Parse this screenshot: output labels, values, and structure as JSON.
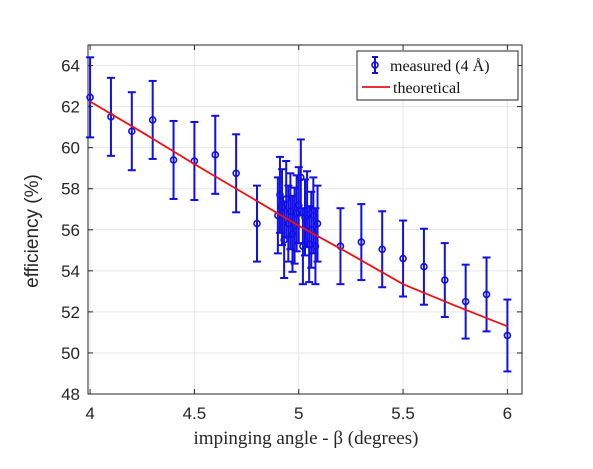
{
  "chart_data": {
    "type": "scatter",
    "title": "",
    "xlabel": "impinging angle - β (degrees)",
    "ylabel": "efficiency (%)",
    "xlim": [
      3.99,
      6.07
    ],
    "ylim": [
      48,
      65
    ],
    "xticks": [
      4,
      4.5,
      5,
      5.5,
      6
    ],
    "xtick_labels": [
      "4",
      "4.5",
      "5",
      "5.5",
      "6"
    ],
    "yticks": [
      48,
      50,
      52,
      54,
      56,
      58,
      60,
      62,
      64
    ],
    "ytick_labels": [
      "48",
      "50",
      "52",
      "54",
      "56",
      "58",
      "60",
      "62",
      "64"
    ],
    "grid": true,
    "legend_position": "top-right",
    "colors": {
      "measured": "#1010e6",
      "theoretical": "#ee1111",
      "grid": "#e6e6e6",
      "axis": "#262626"
    },
    "series": [
      {
        "name": "measured (4 Å)",
        "kind": "errorbar",
        "points": [
          {
            "x": 4.0,
            "y": 62.45,
            "err": 1.95
          },
          {
            "x": 4.1,
            "y": 61.5,
            "err": 1.9
          },
          {
            "x": 4.2,
            "y": 60.8,
            "err": 1.9
          },
          {
            "x": 4.3,
            "y": 61.35,
            "err": 1.9
          },
          {
            "x": 4.4,
            "y": 59.4,
            "err": 1.9
          },
          {
            "x": 4.5,
            "y": 59.35,
            "err": 1.9
          },
          {
            "x": 4.6,
            "y": 59.65,
            "err": 1.9
          },
          {
            "x": 4.7,
            "y": 58.75,
            "err": 1.9
          },
          {
            "x": 4.8,
            "y": 56.3,
            "err": 1.85
          },
          {
            "x": 4.9,
            "y": 56.7,
            "err": 1.85
          },
          {
            "x": 4.91,
            "y": 57.7,
            "err": 1.85
          },
          {
            "x": 4.92,
            "y": 57.1,
            "err": 1.85
          },
          {
            "x": 4.93,
            "y": 55.5,
            "err": 1.85
          },
          {
            "x": 4.94,
            "y": 57.5,
            "err": 1.85
          },
          {
            "x": 4.95,
            "y": 56.3,
            "err": 1.85
          },
          {
            "x": 4.96,
            "y": 56.9,
            "err": 1.85
          },
          {
            "x": 4.97,
            "y": 55.8,
            "err": 1.85
          },
          {
            "x": 4.98,
            "y": 56.2,
            "err": 1.85
          },
          {
            "x": 4.99,
            "y": 56.8,
            "err": 1.85
          },
          {
            "x": 5.0,
            "y": 57.2,
            "err": 1.85
          },
          {
            "x": 5.01,
            "y": 58.55,
            "err": 1.85
          },
          {
            "x": 5.02,
            "y": 55.2,
            "err": 1.85
          },
          {
            "x": 5.03,
            "y": 56.6,
            "err": 1.85
          },
          {
            "x": 5.04,
            "y": 57.0,
            "err": 1.85
          },
          {
            "x": 5.05,
            "y": 55.3,
            "err": 1.85
          },
          {
            "x": 5.06,
            "y": 56.0,
            "err": 1.85
          },
          {
            "x": 5.07,
            "y": 56.7,
            "err": 1.85
          },
          {
            "x": 5.08,
            "y": 55.2,
            "err": 1.85
          },
          {
            "x": 5.09,
            "y": 56.3,
            "err": 1.85
          },
          {
            "x": 5.2,
            "y": 55.2,
            "err": 1.85
          },
          {
            "x": 5.3,
            "y": 55.4,
            "err": 1.85
          },
          {
            "x": 5.4,
            "y": 55.05,
            "err": 1.85
          },
          {
            "x": 5.5,
            "y": 54.6,
            "err": 1.85
          },
          {
            "x": 5.6,
            "y": 54.2,
            "err": 1.85
          },
          {
            "x": 5.7,
            "y": 53.55,
            "err": 1.8
          },
          {
            "x": 5.8,
            "y": 52.5,
            "err": 1.8
          },
          {
            "x": 5.9,
            "y": 52.85,
            "err": 1.8
          },
          {
            "x": 6.0,
            "y": 50.85,
            "err": 1.75
          }
        ]
      },
      {
        "name": "theoretical",
        "kind": "line",
        "x": [
          4.0,
          4.25,
          4.5,
          4.75,
          5.0,
          5.25,
          5.5,
          5.75,
          6.0
        ],
        "y": [
          62.25,
          60.75,
          59.2,
          57.7,
          56.2,
          54.8,
          53.35,
          52.3,
          51.3
        ]
      }
    ]
  }
}
